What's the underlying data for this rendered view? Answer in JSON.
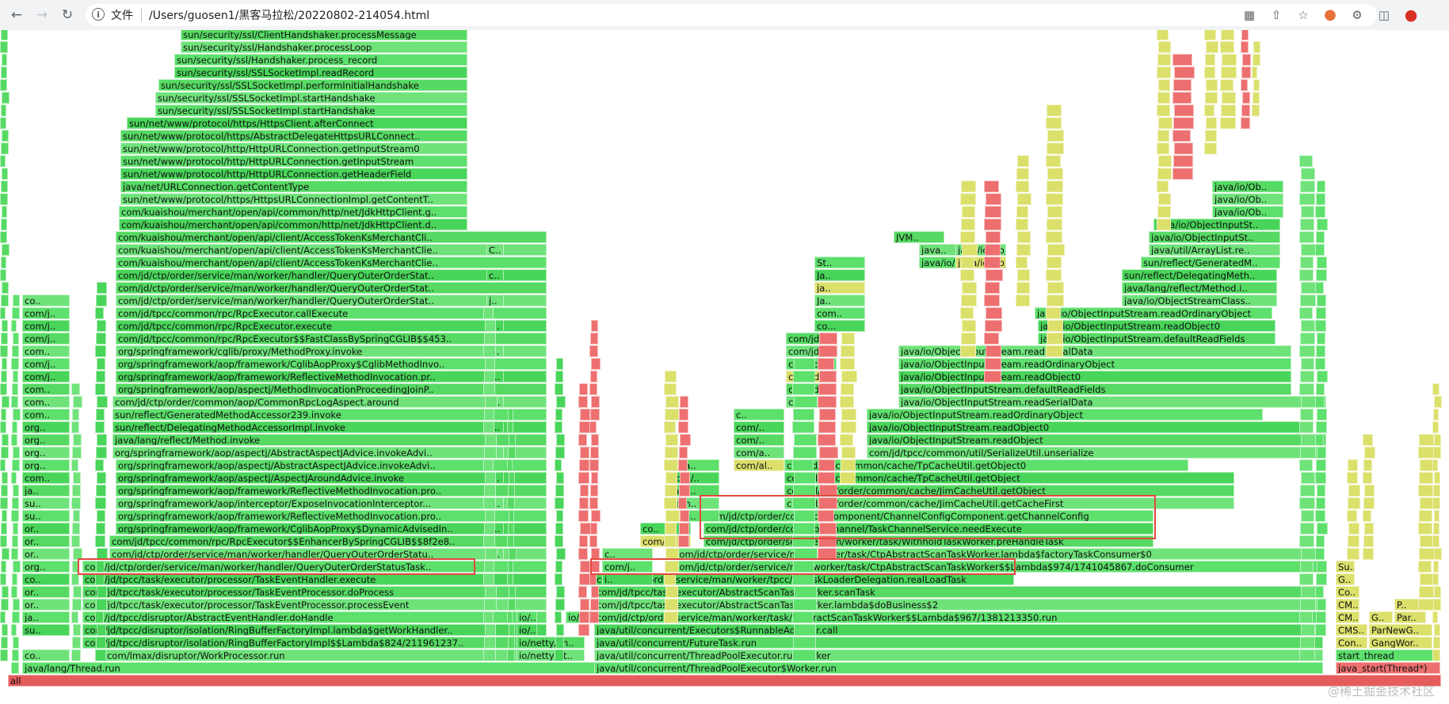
{
  "browser": {
    "info_icon": "info-icon",
    "scheme_label": "文件",
    "url": "/Users/guosen1/黑客马拉松/20220802-214054.html",
    "toolbar_icons": [
      "translate-icon",
      "share-icon",
      "bookmark-star-icon",
      "extension-orange-icon",
      "puzzle-icon",
      "sidebar-icon",
      "profile-avatar-icon"
    ]
  },
  "colors": {
    "frame_green": "#49d55a",
    "frame_yellow": "#dbe06b",
    "frame_red": "#ee6f6f",
    "highlight_box": "#e2483d"
  },
  "watermark": "@稀土掘金技术社区",
  "frames": [
    "all",
    "java/lang/Thread.run",
    "com/lmax/disruptor/WorkProcessor.run",
    "com/jd/tpcc/disruptor/isolation/RingBufferFactoryImpl$$Lambda$824/211961237..",
    "com/jd/tpcc/disruptor/isolation/RingBufferFactoryImpl.lambda$getWorkHandler..",
    "com/jd/tpcc/disruptor/AbstractEventHandler.doHandle",
    "com/jd/tpcc/task/executor/processor/TaskEventProcessor.processEvent",
    "com/jd/tpcc/task/executor/processor/TaskEventProcessor.doProcess",
    "com/jd/tpcc/task/executor/processor/TaskEventHandler.execute",
    "com/jd/ctp/order/service/man/worker/handler/QueryOuterOrderStatusTask..",
    "com/jd/ctp/order/service/man/worker/handler/QueryOuterOrderStatu..",
    "com/jd/tpcc/common/rpc/RpcExecutor$$EnhancerBySpringCGLIB$$8f2e8..",
    "org/springframework/aop/framework/CglibAopProxy$DynamicAdvisedIn..",
    "org/springframework/aop/framework/ReflectiveMethodInvocation.pro..",
    "org/springframework/aop/interceptor/ExposeInvocationInterceptor...",
    "org/springframework/aop/framework/ReflectiveMethodInvocation.pro..",
    "org/springframework/aop/aspectj/AspectJAroundAdvice.invoke",
    "org/springframework/aop/aspectj/AbstractAspectJAdvice.invokeAdvi..",
    "org/springframework/aop/aspectj/AbstractAspectJAdvice.invokeAdvi..",
    "java/lang/reflect/Method.invoke",
    "sun/reflect/DelegatingMethodAccessorImpl.invoke",
    "sun/reflect/GeneratedMethodAccessor239.invoke",
    "com/jd/ctp/order/common/aop/CommonRpcLogAspect.around",
    "org/springframework/aop/aspectj/MethodInvocationProceedingJoinP..",
    "org/springframework/aop/framework/ReflectiveMethodInvocation.pr..",
    "org/springframework/aop/framework/CglibAopProxy$CglibMethodInvo..",
    "org/springframework/cglib/proxy/MethodProxy.invoke",
    "com/jd/tpcc/common/rpc/RpcExecutor$$FastClassBySpringCGLIB$$453..",
    "com/jd/tpcc/common/rpc/RpcExecutor.execute",
    "com/jd/tpcc/common/rpc/RpcExecutor.callExecute",
    "com/jd/ctp/order/service/man/worker/handler/QueryOuterOrderStat..",
    "com/jd/ctp/order/service/man/worker/handler/QueryOuterOrderStat..",
    "com/jd/ctp/order/service/man/worker/handler/QueryOuterOrderStat..",
    "com/kuaishou/merchant/open/api/client/AccessTokenKsMerchantClie..",
    "com/kuaishou/merchant/open/api/client/AccessTokenKsMerchantClie..",
    "com/kuaishou/merchant/open/api/client/AccessTokenKsMerchantCli..",
    "com/kuaishou/merchant/open/api/common/http/net/JdkHttpClient.d..",
    "com/kuaishou/merchant/open/api/common/http/net/JdkHttpClient.g..",
    "sun/net/www/protocol/https/HttpsURLConnectionImpl.getContentT..",
    "java/net/URLConnection.getContentType",
    "sun/net/www/protocol/http/HttpURLConnection.getHeaderField",
    "sun/net/www/protocol/http/HttpURLConnection.getInputStream",
    "sun/net/www/protocol/http/HttpURLConnection.getInputStream0",
    "sun/net/www/protocol/https/AbstractDelegateHttpsURLConnect..",
    "sun/net/www/protocol/https/HttpsClient.afterConnect",
    "sun/security/ssl/SSLSocketImpl.startHandshake",
    "sun/security/ssl/SSLSocketImpl.startHandshake",
    "sun/security/ssl/SSLSocketImpl.performInitialHandshake",
    "sun/security/ssl/SSLSocketImpl.readRecord",
    "sun/security/ssl/Handshaker.process_record",
    "sun/security/ssl/Handshaker.processLoop",
    "sun/security/ssl/ClientHandshaker.processMessage"
  ],
  "right_frames": [
    "java/util/concurrent/ThreadPoolExecutor$Worker.run",
    "java/util/concurrent/ThreadPoolExecutor.runWorker",
    "java/util/concurrent/FutureTask.run",
    "java/util/concurrent/Executors$RunnableAdapter.call",
    "com/jd/ctp/order/service/man/worker/task/AbstractScanTaskWorker$$Lambda$967/1381213350.run",
    "com/jd/tpcc/task/executor/AbstractScanTaskWorker.lambda$doBusiness$2",
    "com/jd/tpcc/task/executor/AbstractScanTaskWorker.scanTask",
    "com/jd/ctp/order/service/man/worker/tpcc/EsTaskLoaderDelegation.realLoadTask",
    "com/jd/ctp/order/service/man/worker/task/CtpAbstractScanTaskWorker$$Lambda$974/1741045867.doConsumer",
    "com/jd/ctp/order/service/man/worker/task/CtpAbstractScanTaskWorker.lambda$factoryTaskConsumer$0",
    "com/jd/ctp/order/service/man/worker/task/WithholdTaskWorker.preHandleTask",
    "com/jd/ctp/order/common/channel/TaskChannelService.needExecute",
    "com/jd/ctp/order/common/component/ChannelConfigComponent.getChannelConfig",
    "com/jd/ctp/order/common/cache/JimCacheUtil.getCacheFirst",
    "com/jd/ctp/order/common/cache/JimCacheUtil.getObject",
    "com/jd/tpcc/common/cache/TpCacheUtil.getObject",
    "com/jd/tpcc/common/cache/TpCacheUtil.getObject0",
    "com/jd/tpcc/common/util/SerializeUtil.unserialize",
    "java/io/ObjectInputStream.readObject",
    "java/io/ObjectInputStream.readObject0",
    "java/io/ObjectInputStream.readOrdinaryObject",
    "java/io/ObjectInputStream.readSerialData",
    "java/io/ObjectInputStream.defaultReadFields",
    "java/io/ObjectInputStream.readObject0",
    "java/io/ObjectInputStream.readOrdinaryObject",
    "java/io/ObjectInputStream.readSerialData",
    "java/io/ObjectInputStream.defaultReadFields",
    "java/io/ObjectInputStream.readObject0",
    "java/io/ObjectInputStream.readOrdinaryObject",
    "java/io/ObjectStreamClass..",
    "java/lang/reflect/Method.i..",
    "sun/reflect/DelegatingMeth..",
    "sun/reflect/GeneratedM..",
    "java/util/ArrayList.re..",
    "java/io/ObjectInputSt..",
    "java/io/ObjectInputSt..",
    "java/io/Ob..",
    "java/io/Ob..",
    "java/io/Ob.."
  ],
  "far_right_frames": [
    "java_start(Thread*)",
    "start_thread",
    "Con..",
    "GangWor..",
    "CMS..",
    "ParNewG..",
    "CM..",
    "G..",
    "Par..",
    "CM..",
    "P..",
    "Co..",
    "G..",
    "Su.."
  ],
  "mid_labels": [
    "io/netty/ut..",
    "io/netty/ch..",
    "io/..",
    "io/..",
    "io/..",
    "i..",
    "com/j..",
    "c..",
    "com/j..",
    "co..",
    "java..",
    "com..",
    "java..",
    "com/..",
    "java..",
    "com/al..",
    "com/a..",
    "com/..",
    "com/..",
    "c..",
    "com/jd/jim/c..",
    "com/jd/jim/c..",
    "com/jd/jim/c..",
    "com/jd/j..",
    "com/jd/j..",
    "com/jd/..",
    "co...",
    "com..",
    "Ja..",
    "ja..",
    "Ja..",
    "St..",
    "JVM..",
    "java..",
    "java/io/Objec..",
    "java/io/Objec..",
    "java/io/ObjectInputSt.."
  ],
  "left_labels": [
    "su..",
    "ja..",
    "or..",
    "or..",
    "co..",
    "org..",
    "or..",
    "or..",
    "or..",
    "su..",
    "su..",
    "ja..",
    "com..",
    "org..",
    "org..",
    "org..",
    "org..",
    "com..",
    "com..",
    "com..",
    "com/j..",
    "com/j..",
    "com..",
    "com/j..",
    "com/j..",
    "com/j..",
    "co.."
  ],
  "small_labels": [
    "c..",
    "o..",
    "o..",
    "s..",
    "j..",
    "o..",
    "o..",
    "o..",
    "s..",
    "s..",
    "j..",
    "c..",
    "C.."
  ]
}
